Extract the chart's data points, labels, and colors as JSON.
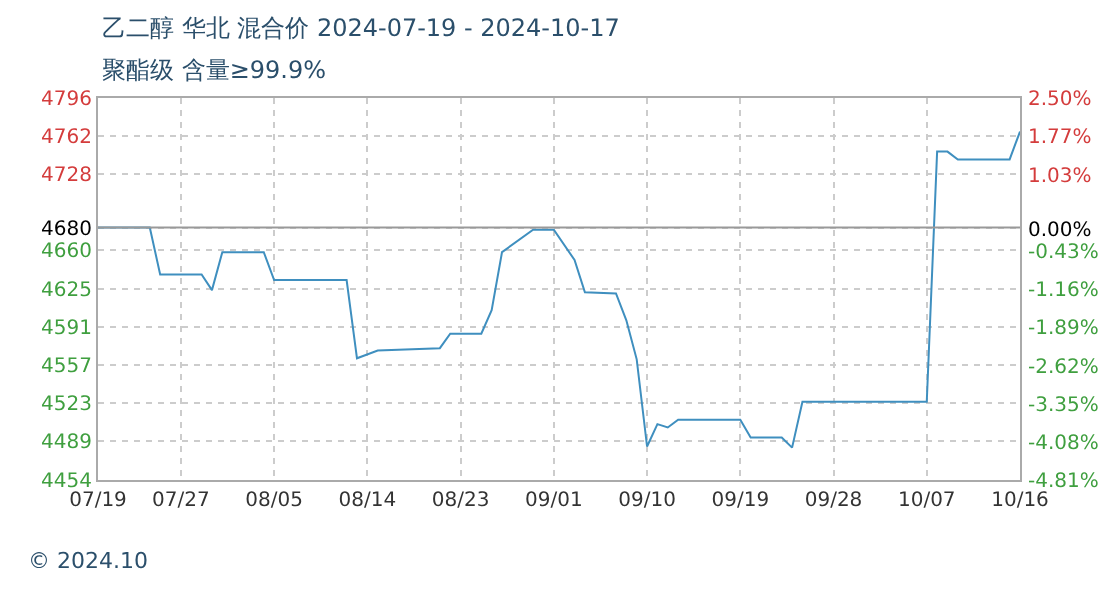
{
  "chart_data": {
    "type": "line",
    "title": "乙二醇 华北 混合价 2024-07-19 - 2024-10-17",
    "subtitle": "聚酯级 含量≥99.9%",
    "annotations": [
      "© 2024.10"
    ],
    "x": [
      "2024-07-19",
      "2024-07-24",
      "2024-07-25",
      "2024-07-29",
      "2024-07-30",
      "2024-07-31",
      "2024-08-04",
      "2024-08-05",
      "2024-08-12",
      "2024-08-13",
      "2024-08-15",
      "2024-08-21",
      "2024-08-22",
      "2024-08-25",
      "2024-08-26",
      "2024-08-27",
      "2024-08-30",
      "2024-09-01",
      "2024-09-03",
      "2024-09-04",
      "2024-09-07",
      "2024-09-08",
      "2024-09-09",
      "2024-09-10",
      "2024-09-11",
      "2024-09-12",
      "2024-09-13",
      "2024-09-19",
      "2024-09-20",
      "2024-09-23",
      "2024-09-24",
      "2024-09-25",
      "2024-10-06",
      "2024-10-07",
      "2024-10-08",
      "2024-10-09",
      "2024-10-10",
      "2024-10-15",
      "2024-10-16"
    ],
    "series": [
      {
        "color": "#3f8fbf",
        "values": [
          4680,
          4680,
          4638,
          4638,
          4624,
          4658,
          4658,
          4633,
          4633,
          4563,
          4570,
          4572,
          4585,
          4585,
          4606,
          4658,
          4678,
          4678,
          4651,
          4622,
          4621,
          4597,
          4562,
          4484,
          4504,
          4501,
          4508,
          4508,
          4492,
          4492,
          4483,
          4524,
          4524,
          4524,
          4748,
          4748,
          4741,
          4741,
          4766
        ]
      }
    ],
    "xlim": [
      "2024-07-19",
      "2024-10-16"
    ],
    "xticks": [
      {
        "value": "2024-07-19",
        "label": "07/19"
      },
      {
        "value": "2024-07-27",
        "label": "07/27"
      },
      {
        "value": "2024-08-05",
        "label": "08/05"
      },
      {
        "value": "2024-08-14",
        "label": "08/14"
      },
      {
        "value": "2024-08-23",
        "label": "08/23"
      },
      {
        "value": "2024-09-01",
        "label": "09/01"
      },
      {
        "value": "2024-09-10",
        "label": "09/10"
      },
      {
        "value": "2024-09-19",
        "label": "09/19"
      },
      {
        "value": "2024-09-28",
        "label": "09/28"
      },
      {
        "value": "2024-10-07",
        "label": "10/07"
      },
      {
        "value": "2024-10-16",
        "label": "10/16"
      }
    ],
    "ylim": [
      4454,
      4796
    ],
    "yticks": [
      4796,
      4762,
      4728,
      4680,
      4660,
      4625,
      4591,
      4557,
      4523,
      4489,
      4454
    ],
    "y2lim": [
      -4.81,
      2.5
    ],
    "y2ticks": [
      {
        "value": 2.5,
        "label": "2.50%"
      },
      {
        "value": 1.77,
        "label": "1.77%"
      },
      {
        "value": 1.03,
        "label": "1.03%"
      },
      {
        "value": 0,
        "label": "0.00%"
      },
      {
        "value": -0.43,
        "label": "-0.43%"
      },
      {
        "value": -1.16,
        "label": "-1.16%"
      },
      {
        "value": -1.89,
        "label": "-1.89%"
      },
      {
        "value": -2.62,
        "label": "-2.62%"
      },
      {
        "value": -3.35,
        "label": "-3.35%"
      },
      {
        "value": -4.08,
        "label": "-4.08%"
      },
      {
        "value": -4.81,
        "label": "-4.81%"
      }
    ],
    "ref_lines": [
      {
        "axis": "y",
        "value": 4680,
        "color": "#999999"
      }
    ],
    "grid": true,
    "marker": "none",
    "line_style": "solid"
  }
}
